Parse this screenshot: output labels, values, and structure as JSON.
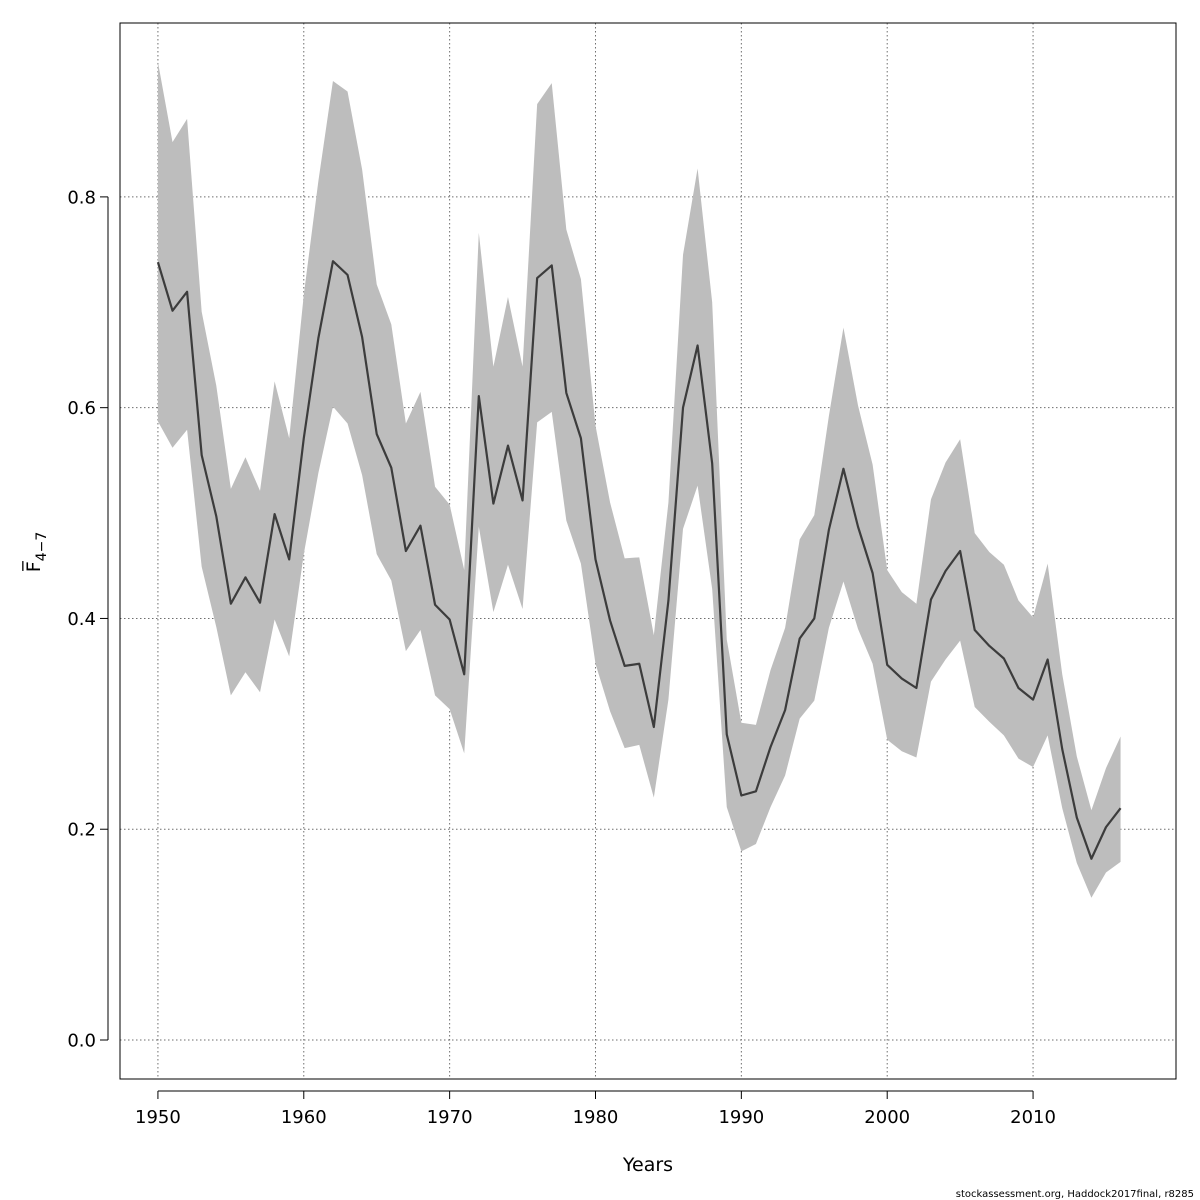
{
  "chart_data": {
    "type": "line",
    "xlabel": "Years",
    "ylabel": "F̅",
    "ylabel_sub": "4−7",
    "xlim": [
      1947.4,
      2019.8
    ],
    "ylim": [
      -0.037,
      0.965
    ],
    "x_ticks": [
      1950,
      1960,
      1970,
      1980,
      1990,
      2000,
      2010
    ],
    "y_ticks": [
      0.0,
      0.2,
      0.4,
      0.6,
      0.8
    ],
    "y_tick_labels": [
      "0.0",
      "0.2",
      "0.4",
      "0.6",
      "0.8"
    ],
    "grid": true,
    "colors": {
      "band": "#bdbdbd",
      "line": "#3c3c3c"
    },
    "series": [
      {
        "x": [
          1950,
          1951,
          1952,
          1953,
          1954,
          1955,
          1956,
          1957,
          1958,
          1959,
          1960,
          1961,
          1962,
          1963,
          1964,
          1965,
          1966,
          1967,
          1968,
          1969,
          1970,
          1971,
          1972,
          1973,
          1974,
          1975,
          1976,
          1977,
          1978,
          1979,
          1980,
          1981,
          1982,
          1983,
          1984,
          1985,
          1986,
          1987,
          1988,
          1989,
          1990,
          1991,
          1992,
          1993,
          1994,
          1995,
          1996,
          1997,
          1998,
          1999,
          2000,
          2001,
          2002,
          2003,
          2004,
          2005,
          2006,
          2007,
          2008,
          2009,
          2010,
          2011,
          2012,
          2013,
          2014,
          2015,
          2016
        ],
        "values": [
          0.738,
          0.692,
          0.71,
          0.555,
          0.497,
          0.414,
          0.439,
          0.415,
          0.499,
          0.456,
          0.571,
          0.666,
          0.739,
          0.726,
          0.667,
          0.575,
          0.543,
          0.464,
          0.488,
          0.413,
          0.399,
          0.347,
          0.611,
          0.509,
          0.564,
          0.512,
          0.723,
          0.735,
          0.614,
          0.571,
          0.456,
          0.398,
          0.355,
          0.357,
          0.297,
          0.417,
          0.6,
          0.659,
          0.547,
          0.29,
          0.232,
          0.236,
          0.278,
          0.313,
          0.381,
          0.4,
          0.484,
          0.542,
          0.487,
          0.443,
          0.356,
          0.343,
          0.334,
          0.418,
          0.445,
          0.464,
          0.389,
          0.374,
          0.362,
          0.334,
          0.323,
          0.361,
          0.276,
          0.211,
          0.172,
          0.202,
          0.22
        ],
        "lower": [
          0.587,
          0.562,
          0.579,
          0.449,
          0.392,
          0.327,
          0.349,
          0.33,
          0.399,
          0.364,
          0.461,
          0.538,
          0.601,
          0.585,
          0.536,
          0.461,
          0.436,
          0.369,
          0.389,
          0.327,
          0.314,
          0.272,
          0.487,
          0.406,
          0.451,
          0.409,
          0.586,
          0.596,
          0.493,
          0.452,
          0.357,
          0.312,
          0.277,
          0.28,
          0.23,
          0.323,
          0.485,
          0.526,
          0.428,
          0.221,
          0.179,
          0.186,
          0.221,
          0.251,
          0.305,
          0.322,
          0.391,
          0.435,
          0.39,
          0.357,
          0.285,
          0.274,
          0.268,
          0.34,
          0.361,
          0.379,
          0.316,
          0.302,
          0.289,
          0.267,
          0.259,
          0.289,
          0.22,
          0.168,
          0.135,
          0.159,
          0.169
        ],
        "upper": [
          0.928,
          0.852,
          0.874,
          0.691,
          0.621,
          0.523,
          0.553,
          0.521,
          0.625,
          0.571,
          0.707,
          0.815,
          0.91,
          0.9,
          0.826,
          0.717,
          0.679,
          0.585,
          0.615,
          0.525,
          0.508,
          0.446,
          0.766,
          0.639,
          0.705,
          0.639,
          0.888,
          0.908,
          0.769,
          0.722,
          0.583,
          0.51,
          0.457,
          0.458,
          0.384,
          0.51,
          0.745,
          0.827,
          0.7,
          0.38,
          0.301,
          0.299,
          0.351,
          0.391,
          0.475,
          0.498,
          0.592,
          0.676,
          0.602,
          0.546,
          0.446,
          0.425,
          0.414,
          0.513,
          0.548,
          0.57,
          0.481,
          0.463,
          0.451,
          0.417,
          0.401,
          0.452,
          0.347,
          0.269,
          0.218,
          0.258,
          0.288
        ]
      }
    ]
  },
  "credit": "stockassessment.org, Haddock2017final, r8285"
}
